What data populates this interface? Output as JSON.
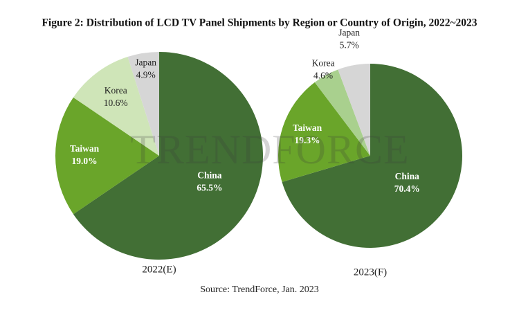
{
  "title": "Figure 2: Distribution of LCD TV Panel Shipments by Region or Country of Origin, 2022~2023",
  "source": "Source: TrendForce, Jan. 2023",
  "watermark": "TRENDFORCE",
  "chart_data": [
    {
      "type": "pie",
      "label": "2022(E)",
      "categories": [
        "China",
        "Taiwan",
        "Korea",
        "Japan"
      ],
      "values": [
        65.5,
        19.0,
        10.6,
        4.9
      ],
      "value_labels": [
        "65.5%",
        "19.0%",
        "10.6%",
        "4.9%"
      ],
      "colors": [
        "#426f35",
        "#6aa52a",
        "#cfe5b8",
        "#d6d6d6"
      ]
    },
    {
      "type": "pie",
      "label": "2023(F)",
      "categories": [
        "China",
        "Taiwan",
        "Korea",
        "Japan"
      ],
      "values": [
        70.4,
        19.3,
        4.6,
        5.7
      ],
      "value_labels": [
        "70.4%",
        "19.3%",
        "4.6%",
        "5.7%"
      ],
      "colors": [
        "#426f35",
        "#6aa52a",
        "#a9d08e",
        "#d6d6d6"
      ]
    }
  ]
}
